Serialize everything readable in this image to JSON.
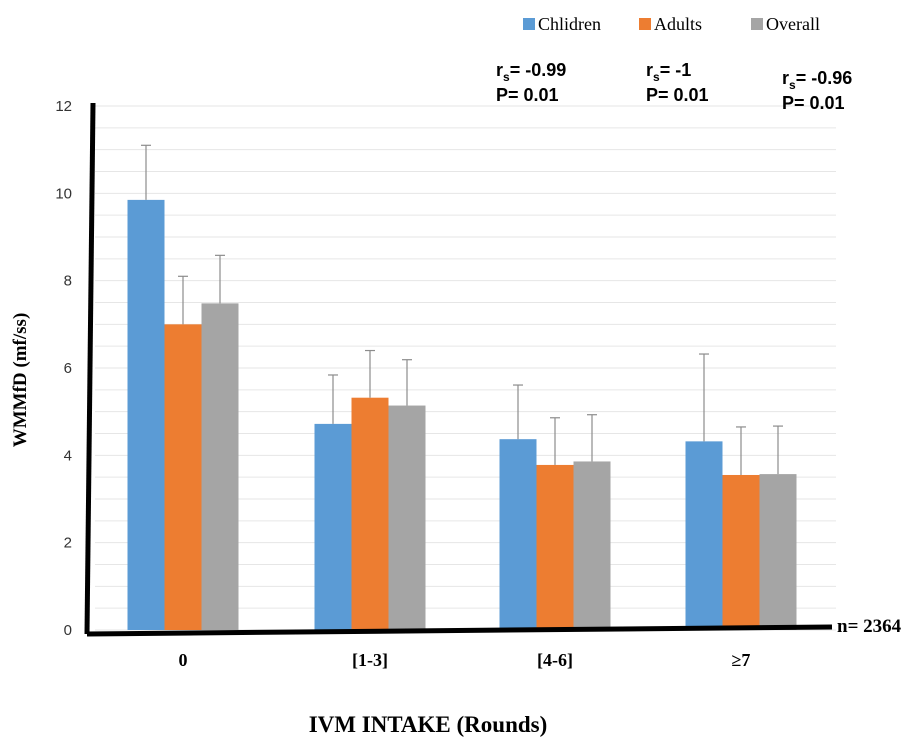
{
  "chart_data": {
    "type": "bar",
    "xlabel": "IVM INTAKE (Rounds)",
    "ylabel": "WMMfD (mf/ss)",
    "categories": [
      "0",
      "[1-3]",
      "[4-6]",
      "≥7"
    ],
    "ylim": [
      0,
      12
    ],
    "yticks": [
      0,
      2,
      4,
      6,
      8,
      10,
      12
    ],
    "grid": true,
    "legend_position": "top-right",
    "series": [
      {
        "name": "Chlidren",
        "color": "#5b9bd5",
        "values": [
          9.85,
          4.72,
          4.37,
          4.32
        ],
        "errors": [
          1.25,
          1.12,
          1.24,
          2.0
        ]
      },
      {
        "name": "Adults",
        "color": "#ed7d31",
        "values": [
          7.0,
          5.32,
          3.78,
          3.55
        ],
        "errors": [
          1.1,
          1.08,
          1.08,
          1.1
        ]
      },
      {
        "name": "Overall",
        "color": "#a5a5a5",
        "values": [
          7.48,
          5.14,
          3.86,
          3.57
        ],
        "errors": [
          1.1,
          1.05,
          1.07,
          1.1
        ]
      }
    ],
    "annotations": [
      {
        "r_symbol": "r",
        "r_sub": "s",
        "r_value": "= -0.99",
        "p_text": "P= 0.01"
      },
      {
        "r_symbol": "r",
        "r_sub": "s",
        "r_value": "= -1",
        "p_text": "P= 0.01"
      },
      {
        "r_symbol": "r",
        "r_sub": "s",
        "r_value": "= -0.96",
        "p_text": "P= 0.01"
      }
    ],
    "n_label": "n= 2364"
  }
}
